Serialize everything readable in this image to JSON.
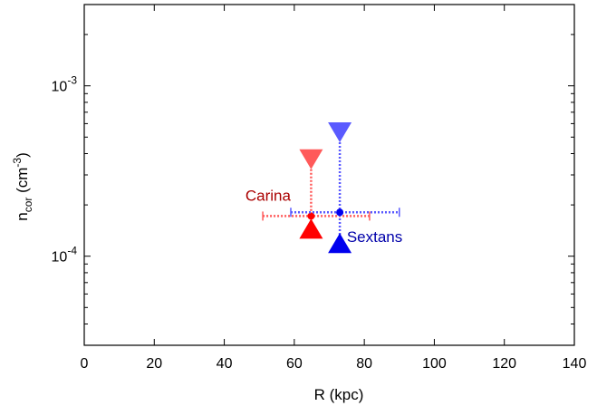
{
  "chart_data": {
    "type": "scatter",
    "xlabel": "R (kpc)",
    "ylabel": {
      "base": "n",
      "sub": "cor",
      "unit_open": " (cm",
      "unit_exp": "-3",
      "unit_close": ")"
    },
    "xlim": [
      0,
      140
    ],
    "ylim": [
      3e-05,
      0.003
    ],
    "yscale": "log",
    "x_ticks": [
      {
        "value": 0,
        "label": "0"
      },
      {
        "value": 20,
        "label": "20"
      },
      {
        "value": 40,
        "label": "40"
      },
      {
        "value": 60,
        "label": "60"
      },
      {
        "value": 80,
        "label": "80"
      },
      {
        "value": 100,
        "label": "100"
      },
      {
        "value": 120,
        "label": "120"
      },
      {
        "value": 140,
        "label": "140"
      }
    ],
    "y_ticks": [
      {
        "value": 0.0001,
        "base": "10",
        "exp": "-4"
      },
      {
        "value": 0.001,
        "base": "10",
        "exp": "-3"
      }
    ],
    "grid": false,
    "legend": "none",
    "series": [
      {
        "name": "Carina",
        "color": "#ff0000",
        "errcolor": "#ff5a5a",
        "point": {
          "x": 64.8,
          "y": 0.000172
        },
        "x_err": [
          51.0,
          81.5
        ],
        "lower_limit_y": 0.000158,
        "upper_limit_y": 0.00034,
        "label_pos": "upper-left"
      },
      {
        "name": "Sextans",
        "color": "#0000ee",
        "errcolor": "#5a5aff",
        "point": {
          "x": 73.0,
          "y": 0.000181
        },
        "x_err": [
          59.0,
          90.0
        ],
        "lower_limit_y": 0.00013,
        "upper_limit_y": 0.00049,
        "label_pos": "lower-right"
      }
    ],
    "annotations": [
      {
        "text": "Carina",
        "color": "#aa0000",
        "x": 59.0,
        "y": 0.000212
      },
      {
        "text": "Sextans",
        "color": "#0000aa",
        "x": 75.0,
        "y": 0.000121
      }
    ]
  }
}
